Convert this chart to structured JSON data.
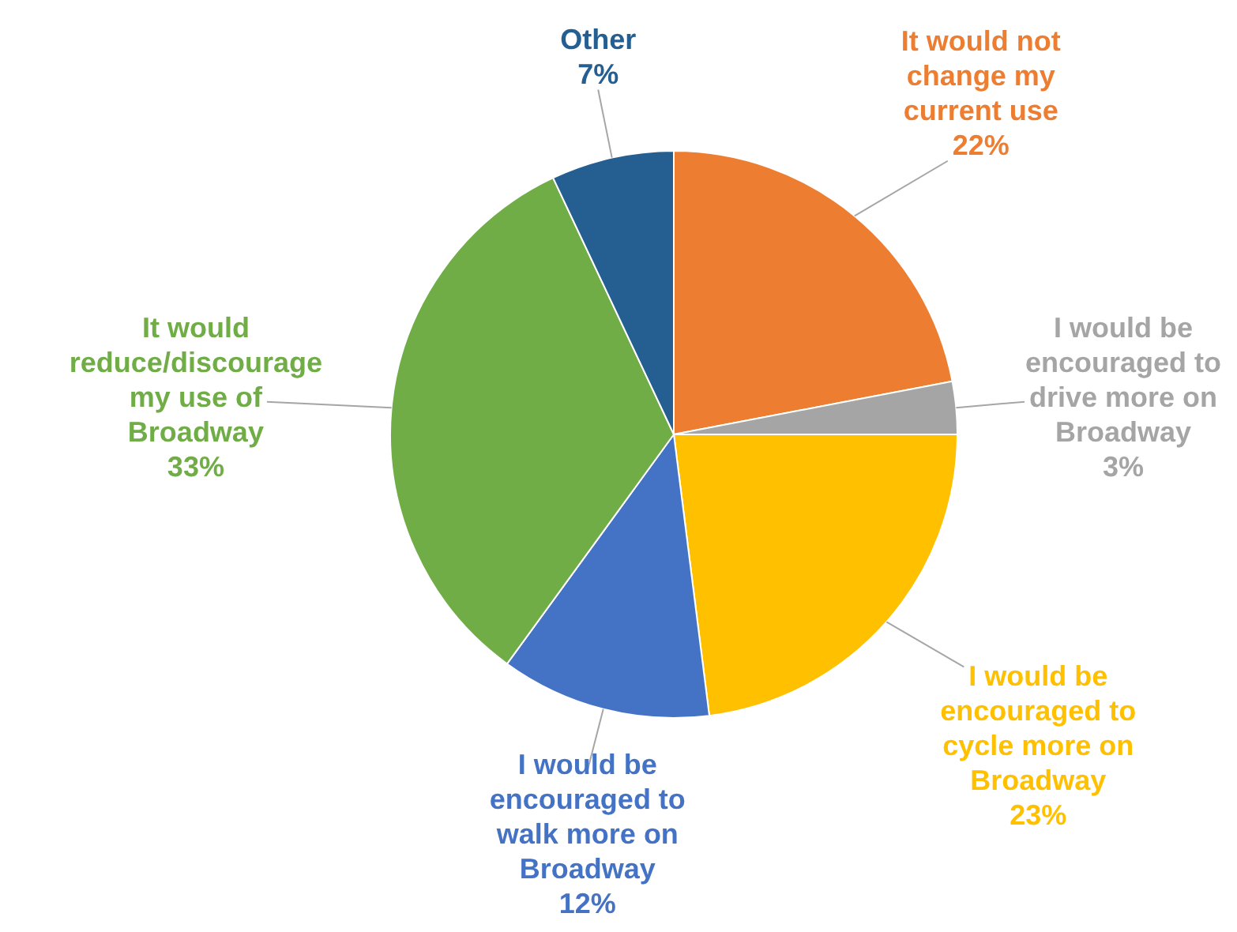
{
  "chart_data": {
    "type": "pie",
    "categories": [
      "It would not change my current use",
      "I would be encouraged to drive more on Broadway",
      "I would be encouraged to cycle more on Broadway",
      "I would be encouraged to walk more on Broadway",
      "It would reduce/discourage my use of Broadway",
      "Other"
    ],
    "values": [
      22,
      3,
      23,
      12,
      33,
      7
    ],
    "colors": [
      "#ed7d31",
      "#a5a5a5",
      "#ffc000",
      "#4472c4",
      "#70ad47",
      "#255e91"
    ],
    "value_labels": [
      "22%",
      "3%",
      "23%",
      "12%",
      "33%",
      "7%"
    ],
    "legend": false
  }
}
